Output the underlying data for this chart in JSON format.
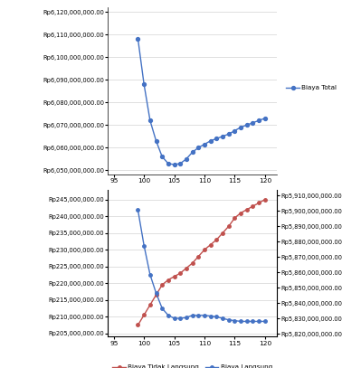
{
  "x": [
    99,
    100,
    101,
    102,
    103,
    104,
    105,
    106,
    107,
    108,
    109,
    110,
    111,
    112,
    113,
    114,
    115,
    116,
    117,
    118,
    119,
    120
  ],
  "biaya_total": [
    6108000000,
    6088000000,
    6072000000,
    6063000000,
    6056000000,
    6053000000,
    6052500000,
    6053000000,
    6055000000,
    6058000000,
    6060000000,
    6061500000,
    6063000000,
    6064000000,
    6065000000,
    6066000000,
    6067500000,
    6069000000,
    6070000000,
    6071000000,
    6072000000,
    6073000000
  ],
  "biaya_tidak_langsung": [
    207500000,
    210500000,
    213500000,
    216500000,
    219500000,
    221000000,
    222000000,
    223000000,
    224500000,
    226000000,
    228000000,
    230000000,
    231500000,
    233000000,
    235000000,
    237000000,
    239500000,
    241000000,
    242000000,
    243000000,
    244000000,
    245000000
  ],
  "biaya_langsung": [
    5900500000,
    5877500000,
    5858500000,
    5846500000,
    5836500000,
    5832000000,
    5830000000,
    5830000000,
    5830500000,
    5832000000,
    5832000000,
    5832000000,
    5831500000,
    5831000000,
    5830000000,
    5829000000,
    5828500000,
    5828000000,
    5828000000,
    5828000000,
    5828000000,
    5828000000
  ],
  "total_ylim": [
    6048000000,
    6122000000
  ],
  "total_yticks": [
    6050000000,
    6060000000,
    6070000000,
    6080000000,
    6090000000,
    6100000000,
    6110000000,
    6120000000
  ],
  "tidak_langsung_ylim": [
    204000000,
    248000000
  ],
  "tidak_langsung_yticks": [
    205000000,
    210000000,
    215000000,
    220000000,
    225000000,
    230000000,
    235000000,
    240000000,
    245000000
  ],
  "langsung_ylim": [
    5818000000,
    5914000000
  ],
  "langsung_yticks": [
    5820000000,
    5830000000,
    5840000000,
    5850000000,
    5860000000,
    5870000000,
    5880000000,
    5890000000,
    5900000000,
    5910000000
  ],
  "x_ticks": [
    95,
    100,
    105,
    110,
    115,
    120
  ],
  "x_lim": [
    94,
    122
  ],
  "line_color_total": "#4472c4",
  "line_color_tidak": "#c0504d",
  "line_color_langsung": "#4472c4",
  "bg_color": "#ffffff",
  "grid_color": "#d3d3d3",
  "tick_fontsize": 4.8,
  "legend_fontsize": 5.2
}
